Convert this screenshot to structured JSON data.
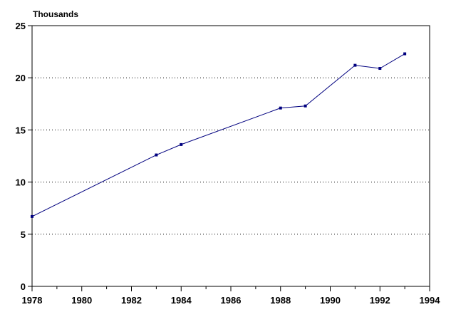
{
  "chart_data": {
    "type": "line",
    "title": "",
    "xlabel": "",
    "ylabel": "Thousands",
    "xlim": [
      1978,
      1994
    ],
    "ylim": [
      0,
      25
    ],
    "x_ticks": [
      1978,
      1980,
      1982,
      1984,
      1986,
      1988,
      1990,
      1992,
      1994
    ],
    "y_ticks": [
      0,
      5,
      10,
      15,
      20,
      25
    ],
    "grid": "horizontal-dotted",
    "legend": "none",
    "colors": {
      "line": "#00007f",
      "marker": "#00007f",
      "grid": "#000000",
      "axis": "#000000"
    },
    "series": [
      {
        "x": [
          1978,
          1983,
          1984,
          1988,
          1989,
          1991,
          1992,
          1993
        ],
        "values": [
          6.7,
          12.6,
          13.6,
          17.1,
          17.3,
          21.2,
          20.9,
          22.3
        ]
      }
    ]
  }
}
